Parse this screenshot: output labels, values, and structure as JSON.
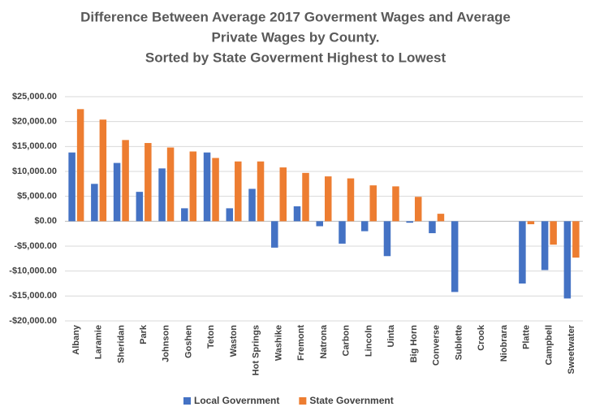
{
  "chart_data": {
    "type": "bar",
    "title": [
      "Difference Between Average 2017 Goverment Wages and Average",
      "Private Wages by County.",
      "Sorted by State Goverment Highest to Lowest"
    ],
    "categories": [
      "Albany",
      "Laramie",
      "Sheridan",
      "Park",
      "Johnson",
      "Goshen",
      "Teton",
      "Waston",
      "Hot Springs",
      "Washike",
      "Fremont",
      "Natrona",
      "Carbon",
      "Lincoln",
      "Uinta",
      "Big Horn",
      "Converse",
      "Sublette",
      "Crook",
      "Niobrara",
      "Platte",
      "Campbell",
      "Sweetwater"
    ],
    "series": [
      {
        "name": "Local Government",
        "color": "#4472c4",
        "values": [
          13800,
          7500,
          11700,
          5900,
          10600,
          2600,
          13800,
          2600,
          6500,
          -5300,
          3000,
          -1000,
          -4500,
          -2000,
          -7000,
          -300,
          -2400,
          -14200,
          0,
          0,
          -12500,
          -9800,
          -15500
        ]
      },
      {
        "name": "State Government",
        "color": "#ed7d31",
        "values": [
          22500,
          20400,
          16300,
          15700,
          14800,
          14000,
          12700,
          12000,
          12000,
          10800,
          9700,
          9000,
          8600,
          7200,
          7000,
          4900,
          1500,
          0,
          0,
          0,
          -600,
          -4700,
          -7300
        ]
      }
    ],
    "ylim": [
      -20000,
      25000
    ],
    "yticks": [
      {
        "value": -20000,
        "label": "-$20,000.00"
      },
      {
        "value": -15000,
        "label": "-$15,000.00"
      },
      {
        "value": -10000,
        "label": "-$10,000.00"
      },
      {
        "value": -5000,
        "label": "-$5,000.00"
      },
      {
        "value": 0,
        "label": "$0.00"
      },
      {
        "value": 5000,
        "label": "$5,000.00"
      },
      {
        "value": 10000,
        "label": "$10,000.00"
      },
      {
        "value": 15000,
        "label": "$15,000.00"
      },
      {
        "value": 20000,
        "label": "$20,000.00"
      },
      {
        "value": 25000,
        "label": "$25,000.00"
      }
    ],
    "grid": true,
    "legend": "bottom"
  }
}
